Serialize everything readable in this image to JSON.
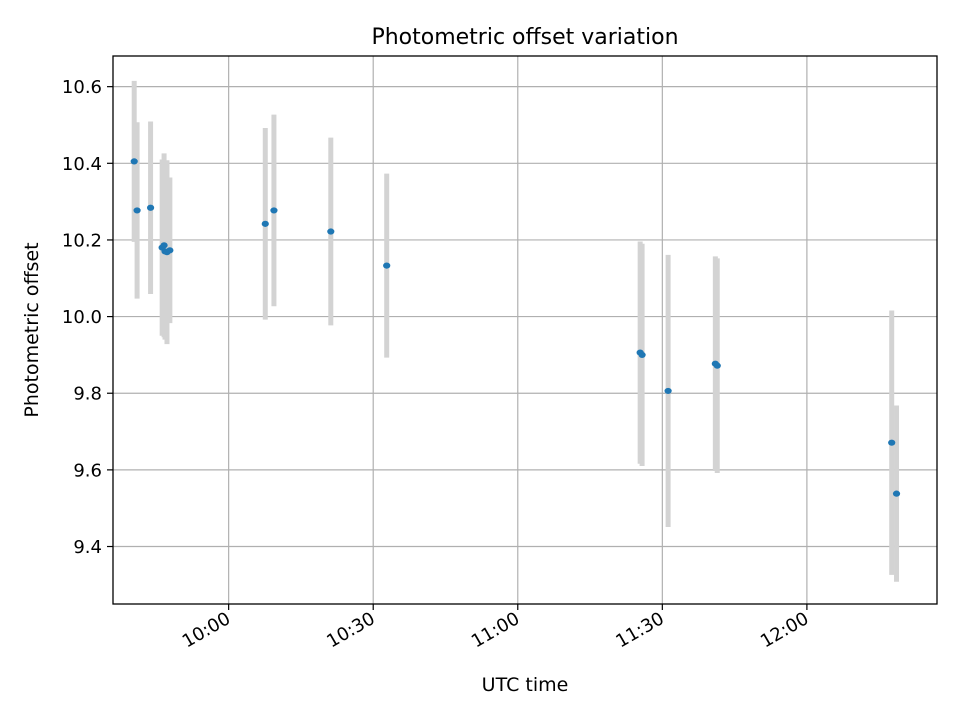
{
  "chart_data": {
    "type": "scatter",
    "title": "Photometric offset variation",
    "xlabel": "UTC time",
    "ylabel": "Photometric offset",
    "x_unit": "minutes since 00:00 UTC",
    "xlim": [
      "09:36",
      "12:27"
    ],
    "ylim": [
      9.25,
      10.68
    ],
    "x_ticks": [
      "10:00",
      "10:30",
      "11:00",
      "11:30",
      "12:00"
    ],
    "y_ticks": [
      "9.4",
      "9.6",
      "9.8",
      "10.0",
      "10.2",
      "10.4",
      "10.6"
    ],
    "grid": true,
    "legend": false,
    "colors": {
      "points": "#1f77b4",
      "errorbars": "#d3d3d3",
      "grid": "#b0b0b0"
    },
    "points": [
      {
        "t": "09:40:24",
        "y": 10.405,
        "err": 0.21
      },
      {
        "t": "09:41:00",
        "y": 10.277,
        "err": 0.23
      },
      {
        "t": "09:43:48",
        "y": 10.284,
        "err": 0.225
      },
      {
        "t": "09:46:12",
        "y": 10.18,
        "err": 0.23
      },
      {
        "t": "09:46:36",
        "y": 10.186,
        "err": 0.24
      },
      {
        "t": "09:46:48",
        "y": 10.17,
        "err": 0.23
      },
      {
        "t": "09:47:12",
        "y": 10.168,
        "err": 0.24
      },
      {
        "t": "09:47:48",
        "y": 10.173,
        "err": 0.19
      },
      {
        "t": "10:07:36",
        "y": 10.242,
        "err": 0.25
      },
      {
        "t": "10:09:24",
        "y": 10.277,
        "err": 0.25
      },
      {
        "t": "10:21:12",
        "y": 10.222,
        "err": 0.245
      },
      {
        "t": "10:32:48",
        "y": 10.133,
        "err": 0.24
      },
      {
        "t": "11:25:24",
        "y": 9.906,
        "err": 0.29
      },
      {
        "t": "11:25:48",
        "y": 9.9,
        "err": 0.29
      },
      {
        "t": "11:31:12",
        "y": 9.806,
        "err": 0.355
      },
      {
        "t": "11:41:00",
        "y": 9.877,
        "err": 0.28
      },
      {
        "t": "11:41:24",
        "y": 9.872,
        "err": 0.28
      },
      {
        "t": "12:17:36",
        "y": 9.671,
        "err": 0.345
      },
      {
        "t": "12:18:36",
        "y": 9.538,
        "err": 0.23
      }
    ]
  }
}
